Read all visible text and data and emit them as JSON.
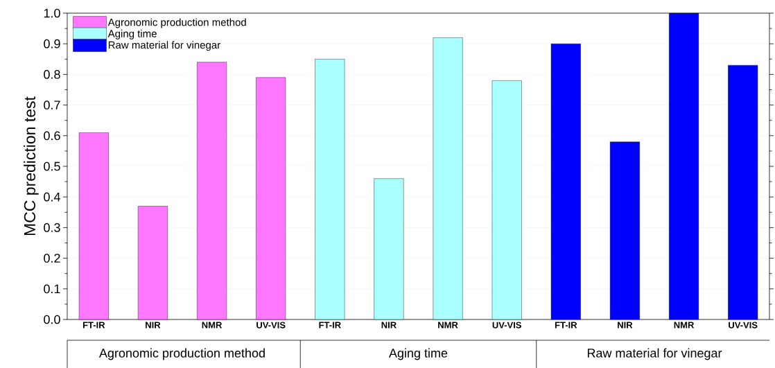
{
  "chart_data": {
    "type": "bar",
    "ylabel": "MCC prediction test",
    "categories": [
      "FT-IR",
      "NIR",
      "NMR",
      "UV-VIS",
      "FT-IR",
      "NIR",
      "NMR",
      "UV-VIS",
      "FT-IR",
      "NIR",
      "NMR",
      "UV-VIS"
    ],
    "series": [
      {
        "name": "Agronomic production method",
        "color": "#ff77ff",
        "values": [
          0.61,
          0.37,
          0.84,
          0.79,
          null,
          null,
          null,
          null,
          null,
          null,
          null,
          null
        ]
      },
      {
        "name": "Aging time",
        "color": "#aaffff",
        "values": [
          null,
          null,
          null,
          null,
          0.85,
          0.46,
          0.92,
          0.78,
          null,
          null,
          null,
          null
        ]
      },
      {
        "name": "Raw material for vinegar",
        "color": "#0000ff",
        "values": [
          null,
          null,
          null,
          null,
          null,
          null,
          null,
          null,
          0.9,
          0.58,
          1.0,
          0.83
        ]
      }
    ],
    "annotations": [
      "Agronomic production method",
      "Aging time",
      "Raw material for vinegar"
    ],
    "ylim": [
      0,
      1.0
    ],
    "yticks": [
      {
        "value": 0,
        "label": "0.0"
      },
      0.1,
      0.2,
      0.3,
      0.4,
      0.5,
      0.6,
      0.7,
      0.8,
      0.9,
      {
        "value": 1,
        "label": "1.0"
      }
    ],
    "grid": "y",
    "legend": "top left"
  }
}
